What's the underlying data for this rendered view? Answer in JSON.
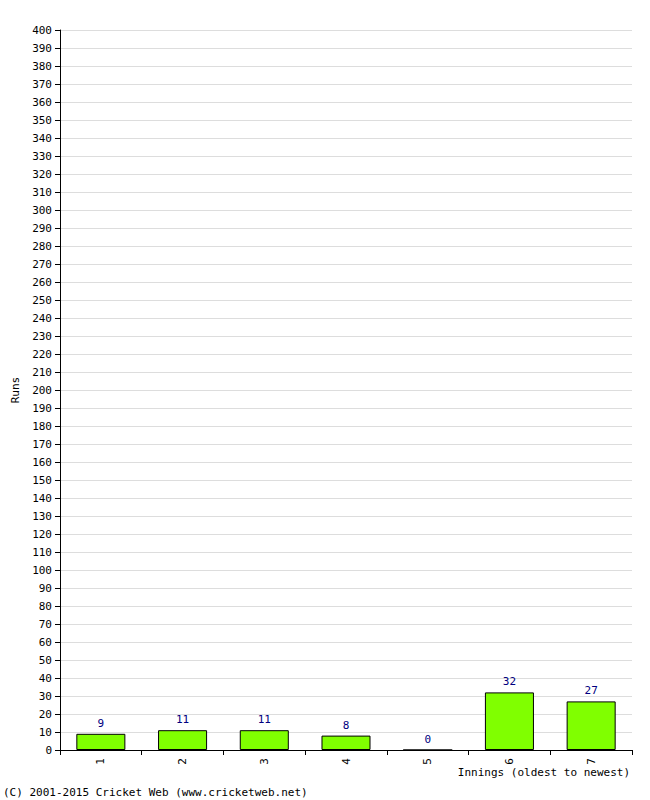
{
  "chart_data": {
    "type": "bar",
    "categories": [
      "1",
      "2",
      "3",
      "4",
      "5",
      "6",
      "7"
    ],
    "values": [
      9,
      11,
      11,
      8,
      0,
      32,
      27
    ],
    "color": "#80ff00",
    "xlabel": "Innings (oldest to newest)",
    "ylabel": "Runs",
    "annotations": [
      "(C) 2001-2015 Cricket Web (www.cricketweb.net)"
    ],
    "ylim": [
      0,
      400
    ],
    "yticks": [
      0,
      10,
      20,
      30,
      40,
      50,
      60,
      70,
      80,
      90,
      100,
      110,
      120,
      130,
      140,
      150,
      160,
      170,
      180,
      190,
      200,
      210,
      220,
      230,
      240,
      250,
      260,
      270,
      280,
      290,
      300,
      310,
      320,
      330,
      340,
      350,
      360,
      370,
      380,
      390,
      400
    ],
    "grid": true,
    "data_labels": true
  }
}
